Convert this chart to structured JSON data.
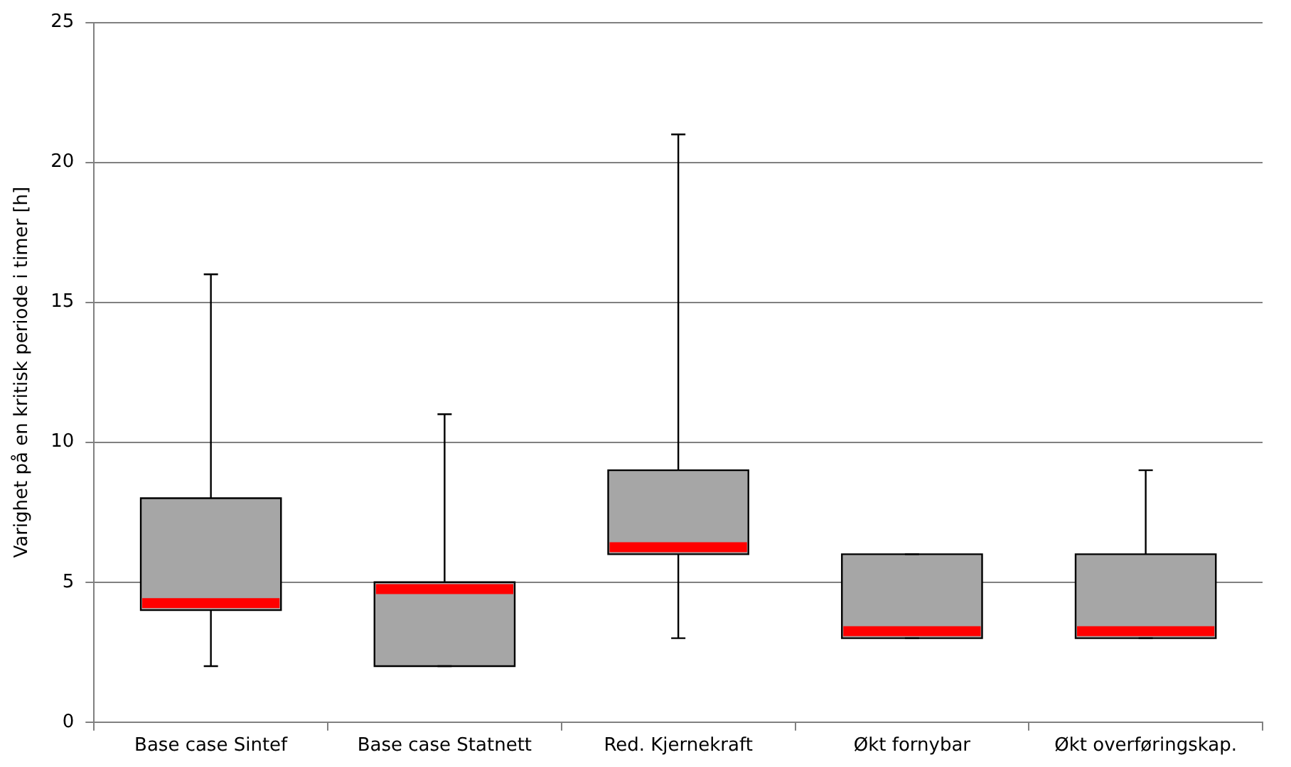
{
  "chart_data": {
    "type": "box",
    "ylabel": "Varighet på en kritisk periode i timer [h]",
    "categories": [
      "Base case Sintef",
      "Base case Statnett",
      "Red. Kjernekraft",
      "Økt fornybar",
      "Økt overføringskap."
    ],
    "boxes": [
      {
        "low": 2,
        "q1": 4,
        "median": 4.25,
        "q3": 8,
        "high": 16
      },
      {
        "low": 2,
        "q1": 2,
        "median": 4.75,
        "q3": 5,
        "high": 11
      },
      {
        "low": 3,
        "q1": 6,
        "median": 6.25,
        "q3": 9,
        "high": 21
      },
      {
        "low": 3,
        "q1": 3,
        "median": 3.25,
        "q3": 6,
        "high": 6
      },
      {
        "low": 3,
        "q1": 3,
        "median": 3.25,
        "q3": 6,
        "high": 9
      }
    ],
    "color": "#a6a6a6",
    "ylim": [
      0,
      25
    ],
    "yticks": [
      0,
      5,
      10,
      15,
      20,
      25
    ],
    "grid": "y",
    "legend": false
  }
}
